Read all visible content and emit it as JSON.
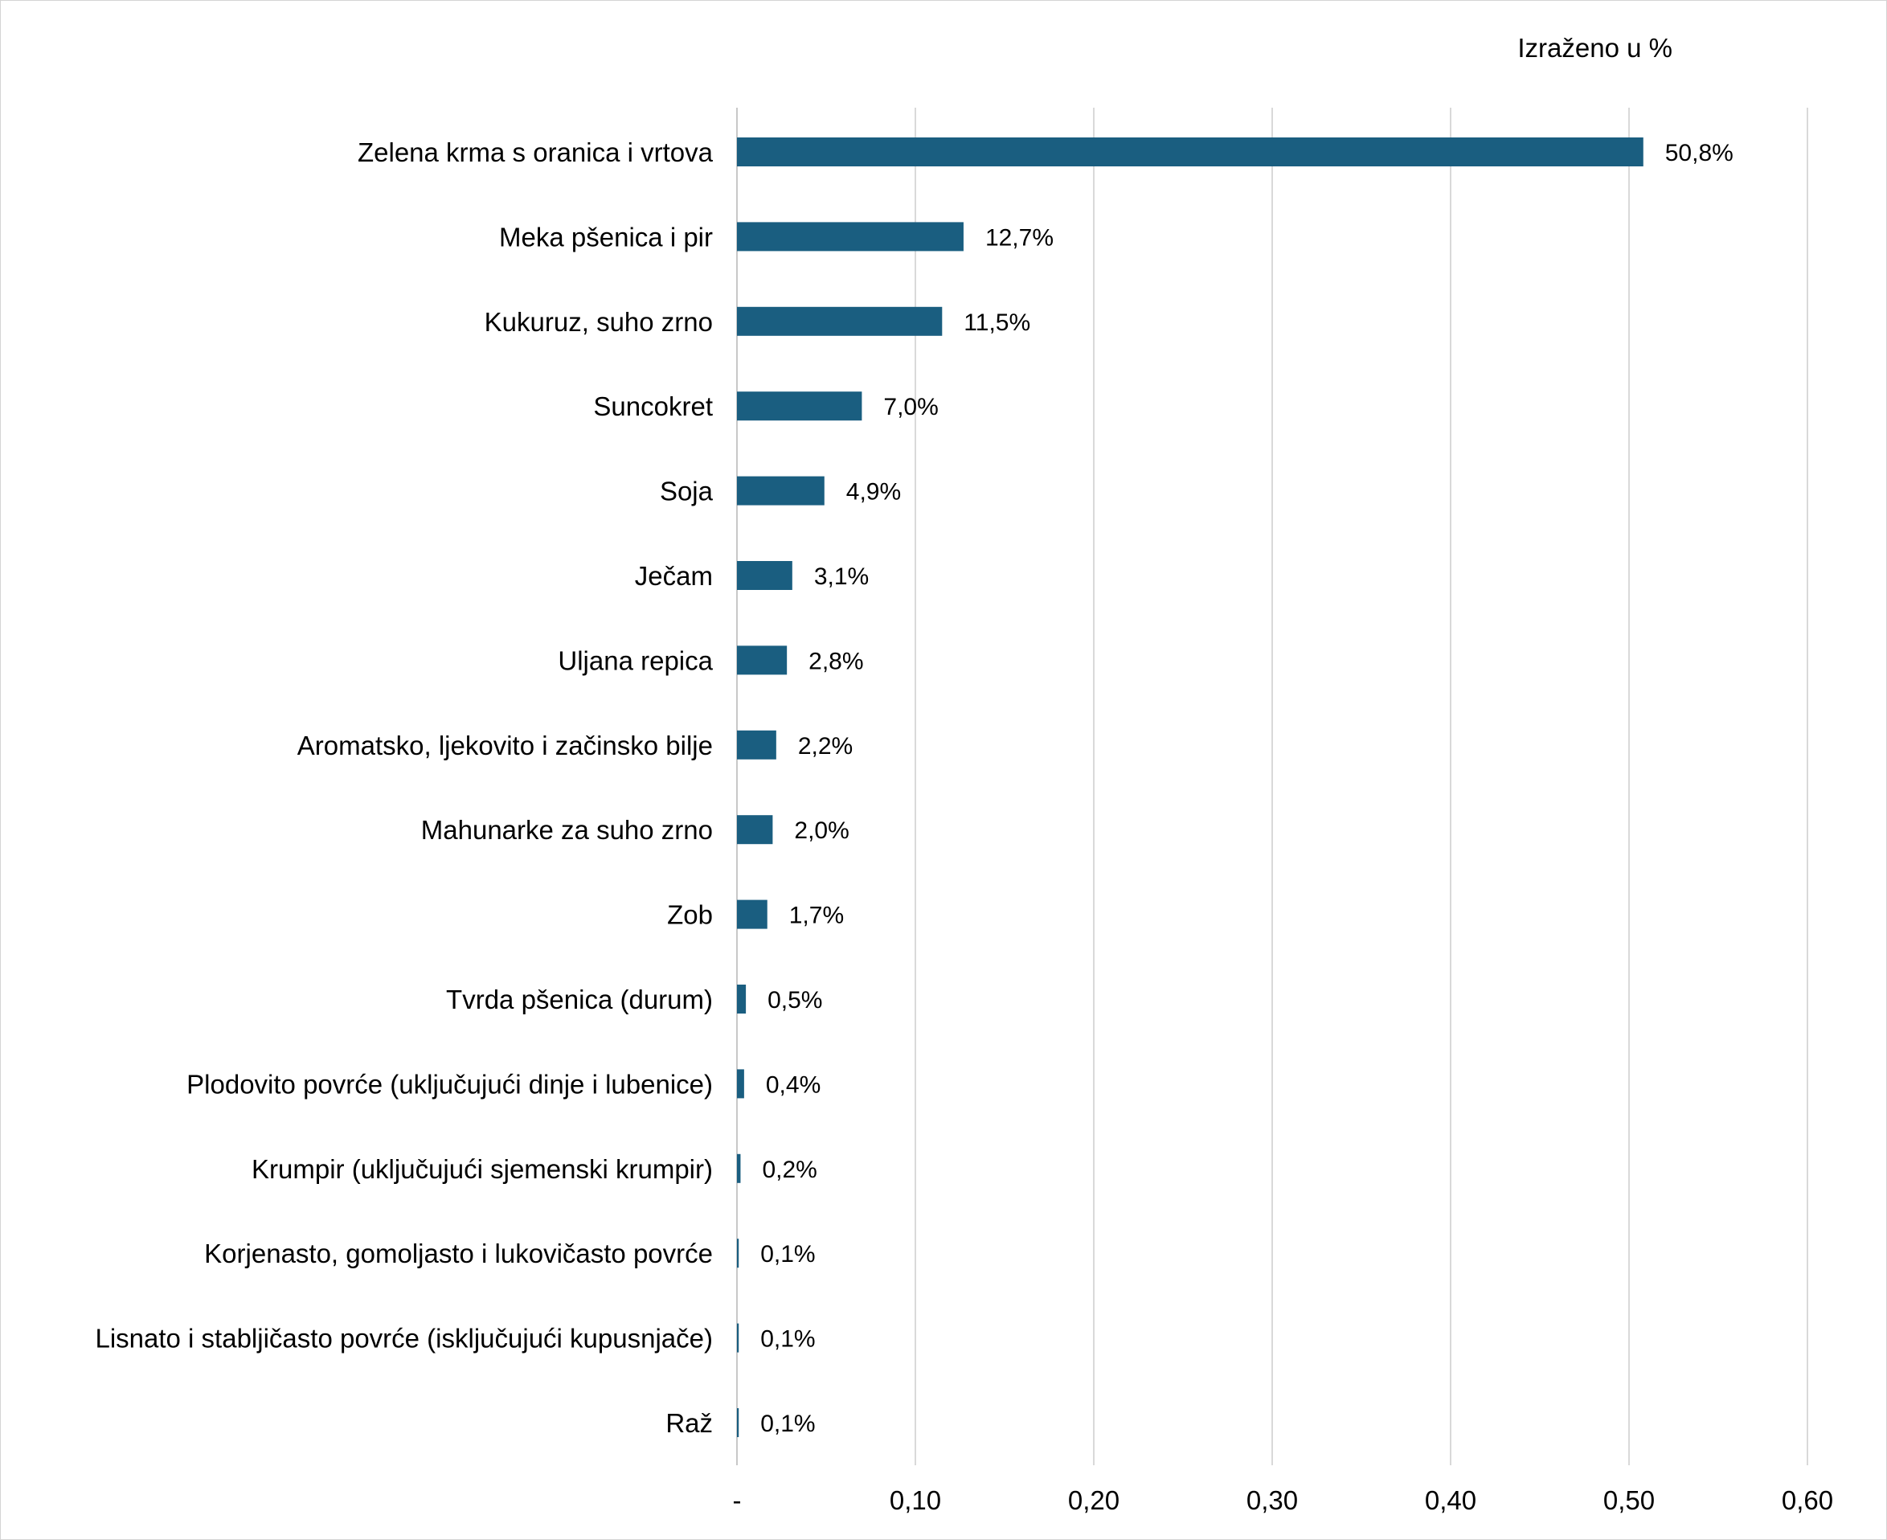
{
  "chart_data": {
    "type": "bar",
    "orientation": "horizontal",
    "title": "",
    "unit_note": "Izraženo u %",
    "xlabel": "",
    "ylabel": "",
    "xlim": [
      0,
      0.6
    ],
    "x_ticks": [
      0,
      0.1,
      0.2,
      0.3,
      0.4,
      0.5,
      0.6
    ],
    "x_tick_labels": [
      "-",
      "0,10",
      "0,20",
      "0,30",
      "0,40",
      "0,50",
      "0,60"
    ],
    "grid": "vertical",
    "legend": "none",
    "bar_color": "#1a5e80",
    "categories": [
      "Zelena krma s oranica i vrtova",
      "Meka pšenica i pir",
      "Kukuruz, suho zrno",
      "Suncokret",
      "Soja",
      "Ječam",
      "Uljana repica",
      "Aromatsko, ljekovito i začinsko bilje",
      "Mahunarke za suho zrno",
      "Zob",
      "Tvrda pšenica (durum)",
      "Plodovito povrće (uključujući dinje i lubenice)",
      "Krumpir (uključujući sjemenski krumpir)",
      "Korjenasto, gomoljasto i lukovičasto povrće",
      "Lisnato i stabljičasto povrće (isključujući kupusnjače)",
      "Raž"
    ],
    "values": [
      0.508,
      0.127,
      0.115,
      0.07,
      0.049,
      0.031,
      0.028,
      0.022,
      0.02,
      0.017,
      0.005,
      0.004,
      0.002,
      0.001,
      0.001,
      0.001
    ],
    "data_labels": [
      "50,8%",
      "12,7%",
      "11,5%",
      "7,0%",
      "4,9%",
      "3,1%",
      "2,8%",
      "2,2%",
      "2,0%",
      "1,7%",
      "0,5%",
      "0,4%",
      "0,2%",
      "0,1%",
      "0,1%",
      "0,1%"
    ]
  }
}
